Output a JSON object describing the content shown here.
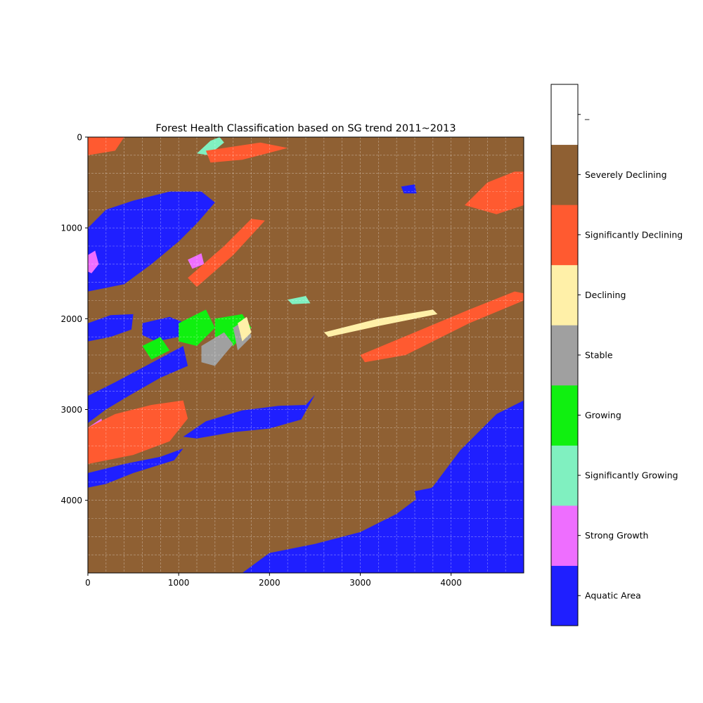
{
  "chart_data": {
    "type": "heatmap",
    "title": "Forest Health Classification based on SG trend 2011~2013",
    "xlabel": "",
    "ylabel": "",
    "xlim": [
      0,
      4800
    ],
    "ylim": [
      4800,
      0
    ],
    "x_ticks": [
      0,
      1000,
      2000,
      3000,
      4000
    ],
    "y_ticks": [
      0,
      1000,
      2000,
      3000,
      4000
    ],
    "grid": true,
    "colorbar": {
      "placement": "right",
      "classes": [
        {
          "label": "Aquatic Area",
          "color": "#1f1fff"
        },
        {
          "label": "Strong Growth",
          "color": "#ee6eff"
        },
        {
          "label": "Significantly Growing",
          "color": "#80f0c0"
        },
        {
          "label": "Growing",
          "color": "#10f010"
        },
        {
          "label": "Stable",
          "color": "#a0a0a0"
        },
        {
          "label": "Declining",
          "color": "#fff0a8"
        },
        {
          "label": "Significantly Declining",
          "color": "#ff5a30"
        },
        {
          "label": "Severely Declining",
          "color": "#8f6033"
        },
        {
          "label": "_",
          "color": "#ffffff"
        }
      ]
    },
    "regions": [
      {
        "class": "Aquatic Area",
        "points": [
          [
            1700,
            4800
          ],
          [
            2000,
            4580
          ],
          [
            2500,
            4480
          ],
          [
            3000,
            4350
          ],
          [
            3400,
            4150
          ],
          [
            3800,
            3850
          ],
          [
            4100,
            3450
          ],
          [
            4500,
            3050
          ],
          [
            4800,
            2900
          ],
          [
            4800,
            4800
          ]
        ]
      },
      {
        "class": "Aquatic Area",
        "points": [
          [
            0,
            1000
          ],
          [
            200,
            800
          ],
          [
            500,
            700
          ],
          [
            900,
            600
          ],
          [
            1250,
            600
          ],
          [
            1400,
            720
          ],
          [
            1200,
            950
          ],
          [
            1000,
            1150
          ],
          [
            700,
            1400
          ],
          [
            400,
            1620
          ],
          [
            0,
            1700
          ]
        ]
      },
      {
        "class": "Aquatic Area",
        "points": [
          [
            1050,
            3300
          ],
          [
            1300,
            3130
          ],
          [
            1700,
            3010
          ],
          [
            2100,
            2960
          ],
          [
            2400,
            2950
          ],
          [
            2500,
            2840
          ],
          [
            2350,
            3110
          ],
          [
            2000,
            3210
          ],
          [
            1600,
            3250
          ],
          [
            1200,
            3320
          ]
        ]
      },
      {
        "class": "Aquatic Area",
        "points": [
          [
            0,
            2050
          ],
          [
            250,
            1960
          ],
          [
            500,
            1950
          ],
          [
            480,
            2120
          ],
          [
            250,
            2200
          ],
          [
            0,
            2250
          ]
        ]
      },
      {
        "class": "Aquatic Area",
        "points": [
          [
            0,
            2850
          ],
          [
            300,
            2700
          ],
          [
            600,
            2540
          ],
          [
            900,
            2380
          ],
          [
            1050,
            2300
          ],
          [
            1100,
            2520
          ],
          [
            800,
            2650
          ],
          [
            450,
            2850
          ],
          [
            200,
            3000
          ],
          [
            0,
            3150
          ]
        ]
      },
      {
        "class": "Aquatic Area",
        "points": [
          [
            0,
            3700
          ],
          [
            400,
            3600
          ],
          [
            800,
            3520
          ],
          [
            1050,
            3430
          ],
          [
            950,
            3560
          ],
          [
            500,
            3700
          ],
          [
            200,
            3820
          ],
          [
            0,
            3860
          ]
        ]
      },
      {
        "class": "Aquatic Area",
        "points": [
          [
            600,
            2050
          ],
          [
            900,
            1980
          ],
          [
            1100,
            2060
          ],
          [
            1000,
            2200
          ],
          [
            750,
            2250
          ],
          [
            600,
            2180
          ]
        ]
      },
      {
        "class": "Aquatic Area",
        "points": [
          [
            3450,
            545
          ],
          [
            3600,
            520
          ],
          [
            3620,
            620
          ],
          [
            3480,
            620
          ]
        ]
      },
      {
        "class": "Aquatic Area",
        "points": [
          [
            3600,
            3900
          ],
          [
            3800,
            3860
          ],
          [
            3810,
            4000
          ],
          [
            3620,
            4020
          ]
        ]
      },
      {
        "class": "Significantly Growing",
        "points": [
          [
            1200,
            180
          ],
          [
            1350,
            40
          ],
          [
            1450,
            0
          ],
          [
            1500,
            60
          ],
          [
            1330,
            200
          ]
        ]
      },
      {
        "class": "Significantly Growing",
        "points": [
          [
            2200,
            1790
          ],
          [
            2400,
            1750
          ],
          [
            2450,
            1830
          ],
          [
            2250,
            1840
          ]
        ]
      },
      {
        "class": "Significantly Growing",
        "points": [
          [
            4500,
            1850
          ],
          [
            4700,
            1780
          ],
          [
            4750,
            1820
          ],
          [
            4550,
            1880
          ]
        ]
      },
      {
        "class": "Growing",
        "points": [
          [
            1000,
            2050
          ],
          [
            1300,
            1900
          ],
          [
            1400,
            2100
          ],
          [
            1200,
            2300
          ],
          [
            1000,
            2250
          ]
        ]
      },
      {
        "class": "Growing",
        "points": [
          [
            600,
            2300
          ],
          [
            800,
            2200
          ],
          [
            900,
            2350
          ],
          [
            700,
            2450
          ]
        ]
      },
      {
        "class": "Growing",
        "points": [
          [
            1400,
            2000
          ],
          [
            1700,
            1950
          ],
          [
            1800,
            2100
          ],
          [
            1600,
            2300
          ],
          [
            1400,
            2200
          ]
        ]
      },
      {
        "class": "Stable",
        "points": [
          [
            1250,
            2300
          ],
          [
            1500,
            2150
          ],
          [
            1600,
            2280
          ],
          [
            1400,
            2520
          ],
          [
            1250,
            2480
          ]
        ]
      },
      {
        "class": "Stable",
        "points": [
          [
            1600,
            2100
          ],
          [
            1750,
            2000
          ],
          [
            1800,
            2200
          ],
          [
            1650,
            2350
          ]
        ]
      },
      {
        "class": "Strong Growth",
        "points": [
          [
            0,
            1300
          ],
          [
            80,
            1250
          ],
          [
            120,
            1400
          ],
          [
            40,
            1500
          ],
          [
            0,
            1480
          ]
        ]
      },
      {
        "class": "Strong Growth",
        "points": [
          [
            0,
            3200
          ],
          [
            150,
            3100
          ],
          [
            170,
            3230
          ],
          [
            30,
            3300
          ]
        ]
      },
      {
        "class": "Strong Growth",
        "points": [
          [
            1100,
            1350
          ],
          [
            1250,
            1280
          ],
          [
            1280,
            1400
          ],
          [
            1150,
            1450
          ]
        ]
      },
      {
        "class": "Significantly Declining",
        "points": [
          [
            0,
            3200
          ],
          [
            300,
            3050
          ],
          [
            700,
            2950
          ],
          [
            1050,
            2900
          ],
          [
            1100,
            3100
          ],
          [
            900,
            3350
          ],
          [
            500,
            3500
          ],
          [
            0,
            3600
          ]
        ]
      },
      {
        "class": "Significantly Declining",
        "points": [
          [
            1100,
            1550
          ],
          [
            1500,
            1200
          ],
          [
            1800,
            900
          ],
          [
            1950,
            920
          ],
          [
            1600,
            1300
          ],
          [
            1200,
            1650
          ]
        ]
      },
      {
        "class": "Significantly Declining",
        "points": [
          [
            4150,
            750
          ],
          [
            4400,
            500
          ],
          [
            4700,
            380
          ],
          [
            4800,
            380
          ],
          [
            4800,
            750
          ],
          [
            4500,
            850
          ]
        ]
      },
      {
        "class": "Significantly Declining",
        "points": [
          [
            1300,
            150
          ],
          [
            1900,
            60
          ],
          [
            2200,
            120
          ],
          [
            1700,
            250
          ],
          [
            1350,
            280
          ]
        ]
      },
      {
        "class": "Significantly Declining",
        "points": [
          [
            3000,
            2400
          ],
          [
            3600,
            2150
          ],
          [
            4200,
            1900
          ],
          [
            4700,
            1700
          ],
          [
            4800,
            1720
          ],
          [
            4800,
            1800
          ],
          [
            4200,
            2050
          ],
          [
            3500,
            2400
          ],
          [
            3050,
            2480
          ]
        ]
      },
      {
        "class": "Significantly Declining",
        "points": [
          [
            0,
            0
          ],
          [
            400,
            0
          ],
          [
            300,
            150
          ],
          [
            0,
            200
          ]
        ]
      },
      {
        "class": "Declining",
        "points": [
          [
            1650,
            2050
          ],
          [
            1750,
            1980
          ],
          [
            1800,
            2150
          ],
          [
            1700,
            2250
          ]
        ]
      },
      {
        "class": "Declining",
        "points": [
          [
            2600,
            2150
          ],
          [
            3200,
            2000
          ],
          [
            3800,
            1900
          ],
          [
            3850,
            1950
          ],
          [
            3200,
            2080
          ],
          [
            2650,
            2200
          ]
        ]
      }
    ]
  }
}
